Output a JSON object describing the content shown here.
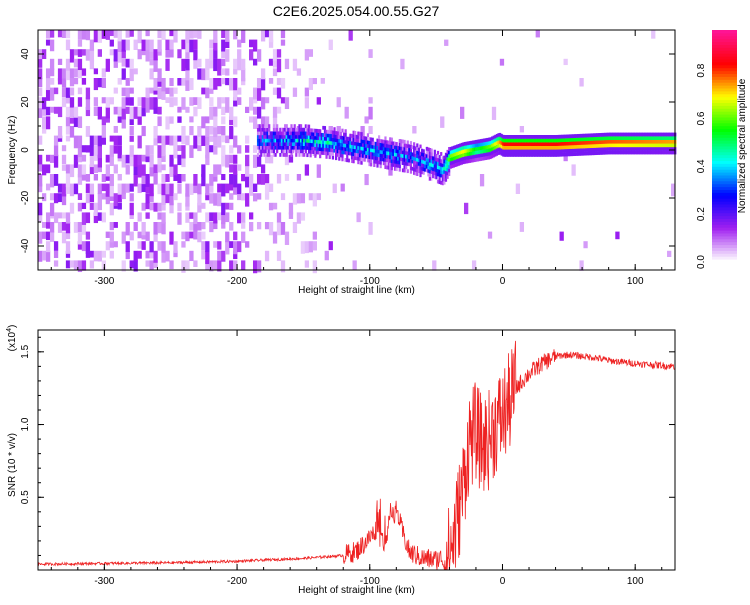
{
  "title": "C2E6.2025.054.00.55.G27",
  "chart_data": [
    {
      "type": "heatmap",
      "xlabel": "Height of straight line (km)",
      "ylabel": "Frequency (Hz)",
      "xlim": [
        -350,
        130
      ],
      "ylim": [
        -50,
        50
      ],
      "xticks": [
        -300,
        -200,
        -100,
        0,
        100
      ],
      "yticks": [
        -40,
        -20,
        0,
        20,
        40
      ],
      "colorbar": {
        "label": "Normalized spectral amplitude",
        "range": [
          0,
          1
        ],
        "ticks": [
          "0.0",
          "0.2",
          "0.4",
          "0.6",
          "0.8"
        ],
        "colormap": [
          "#ffffff",
          "#a020f0",
          "#0000ff",
          "#00ffff",
          "#00ff00",
          "#ffff00",
          "#ff0000",
          "#ff1493"
        ]
      },
      "track": {
        "x": [
          -185,
          -170,
          -150,
          -130,
          -110,
          -90,
          -70,
          -55,
          -45,
          -40,
          -30,
          -20,
          -10,
          -3,
          0,
          40,
          80,
          130
        ],
        "y": [
          4,
          4,
          4,
          3,
          1,
          -1,
          -3,
          -6,
          -8,
          -3,
          -1,
          0,
          1,
          3,
          2,
          2,
          3,
          3
        ],
        "amplitude": [
          0.3,
          0.35,
          0.4,
          0.4,
          0.35,
          0.35,
          0.3,
          0.35,
          0.35,
          0.7,
          0.8,
          0.6,
          0.7,
          0.85,
          0.95,
          0.95,
          0.9,
          0.85
        ]
      }
    },
    {
      "type": "line",
      "xlabel": "Height of straight line (km)",
      "ylabel": "SNR (10 * v/v)",
      "multiplier": "(x10",
      "multiplier_exp": "4",
      "xlim": [
        -350,
        130
      ],
      "ylim": [
        0,
        1.65
      ],
      "xticks": [
        -300,
        -200,
        -100,
        0,
        100
      ],
      "yticks": [
        "0.5",
        "1.0",
        "1.5"
      ],
      "color": "#ee2222",
      "series": [
        {
          "x": [
            -350,
            -250,
            -200,
            -150,
            -120,
            -110,
            -100,
            -95,
            -90,
            -85,
            -80,
            -75,
            -70,
            -60,
            -50,
            -40,
            -35,
            -30,
            -25,
            -20,
            -15,
            -10,
            -5,
            0,
            5,
            10,
            20,
            30,
            40,
            50,
            60,
            70,
            80,
            100,
            130
          ],
          "y": [
            0.04,
            0.05,
            0.06,
            0.08,
            0.1,
            0.13,
            0.22,
            0.28,
            0.18,
            0.32,
            0.42,
            0.25,
            0.12,
            0.08,
            0.07,
            0.1,
            0.3,
            0.55,
            0.9,
            0.95,
            0.85,
            0.9,
            1.0,
            1.05,
            1.15,
            1.25,
            1.35,
            1.42,
            1.47,
            1.48,
            1.47,
            1.46,
            1.44,
            1.42,
            1.4
          ]
        }
      ]
    }
  ]
}
